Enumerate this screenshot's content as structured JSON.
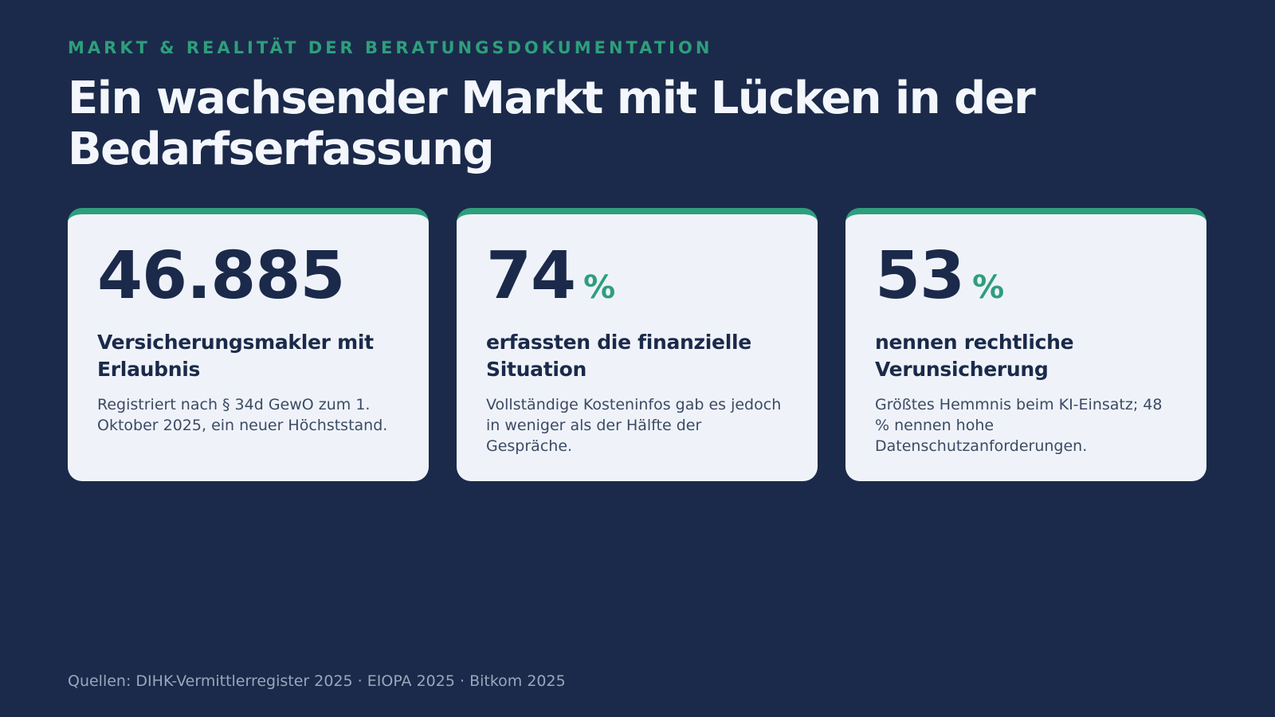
{
  "eyebrow": "MARKT & REALITÄT DER BERATUNGSDOKUMENTATION",
  "title": "Ein wachsender Markt mit Lücken in der Bedarfserfassung",
  "cards": [
    {
      "value": "46.885",
      "unit": "",
      "heading": "Versicherungsmakler mit Erlaubnis",
      "text": "Registriert nach § 34d GewO zum 1. Oktober 2025, ein neuer Höchststand."
    },
    {
      "value": "74",
      "unit": "%",
      "heading": "erfassten die finanzielle Situation",
      "text": "Vollständige Kosteninfos gab es jedoch in weniger als der Hälfte der Gespräche."
    },
    {
      "value": "53",
      "unit": "%",
      "heading": "nennen rechtliche Verunsicherung",
      "text": "Größtes Hemmnis beim KI-Einsatz; 48 % nennen hohe Datenschutzanforderungen."
    }
  ],
  "sources": "Quellen: DIHK-Vermittlerregister 2025 · EIOPA 2025 · Bitkom 2025",
  "colors": {
    "background": "#1b2a4a",
    "accent": "#2e9e7c",
    "card": "#eff3f9",
    "text_dark": "#1b2a4a"
  }
}
